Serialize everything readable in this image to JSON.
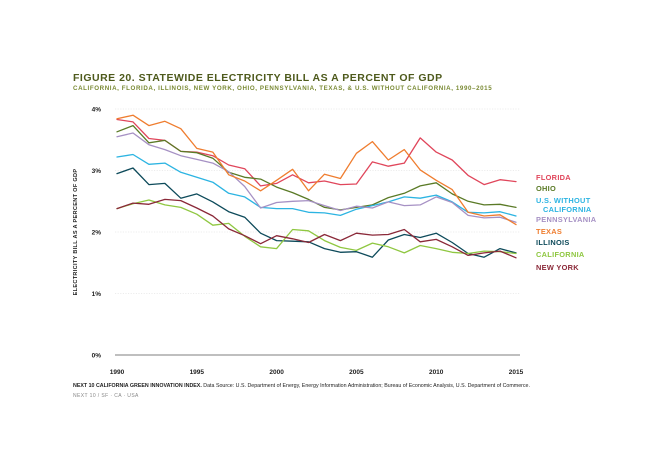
{
  "figure": {
    "title": "FIGURE 20. STATEWIDE ELECTRICITY BILL AS A PERCENT OF GDP",
    "subtitle": "CALIFORNIA, FLORIDA, ILLINOIS, NEW YORK, OHIO, PENNSYLVANIA, TEXAS, & U.S. WITHOUT CALIFORNIA, 1990–2015",
    "source_prefix": "NEXT 10 CALIFORNIA GREEN INNOVATION INDEX.",
    "source_text": " Data Source: U.S. Department of Energy, Energy Information Administration; Bureau of Economic Analysis, U.S. Department of Commerce.",
    "footer": "NEXT 10 / SF · CA · USA"
  },
  "chart_data": {
    "type": "line",
    "ylabel": "ELECTRICITY BILL AS A PERCENT OF GDP",
    "xlabel": "",
    "xlim": [
      1990,
      2015
    ],
    "ylim": [
      0,
      4
    ],
    "x_ticks": [
      1990,
      1995,
      2000,
      2005,
      2010,
      2015
    ],
    "y_ticks": [
      0,
      1,
      2,
      3,
      4
    ],
    "y_tick_labels": [
      "0%",
      "1%",
      "2%",
      "3%",
      "4%"
    ],
    "grid": "horizontal",
    "legend_position": "right",
    "x": [
      1990,
      1991,
      1992,
      1993,
      1994,
      1995,
      1996,
      1997,
      1998,
      1999,
      2000,
      2001,
      2002,
      2003,
      2004,
      2005,
      2006,
      2007,
      2008,
      2009,
      2010,
      2011,
      2012,
      2013,
      2014,
      2015
    ],
    "series": [
      {
        "name": "FLORIDA",
        "color": "#e0465b",
        "values": [
          3.83,
          3.79,
          3.52,
          3.49,
          3.31,
          3.3,
          3.24,
          3.09,
          3.03,
          2.75,
          2.79,
          2.93,
          2.8,
          2.83,
          2.77,
          2.78,
          3.14,
          3.07,
          3.12,
          3.53,
          3.3,
          3.17,
          2.92,
          2.77,
          2.85,
          2.82
        ]
      },
      {
        "name": "OHIO",
        "color": "#5a7a26",
        "values": [
          3.63,
          3.73,
          3.45,
          3.49,
          3.31,
          3.29,
          3.2,
          2.97,
          2.89,
          2.86,
          2.73,
          2.64,
          2.53,
          2.4,
          2.36,
          2.4,
          2.44,
          2.56,
          2.63,
          2.75,
          2.8,
          2.62,
          2.5,
          2.44,
          2.45,
          2.4
        ]
      },
      {
        "name": "U.S. WITHOUT CALIFORNIA",
        "color": "#2cb4e2",
        "values": [
          3.22,
          3.26,
          3.1,
          3.12,
          2.97,
          2.89,
          2.81,
          2.63,
          2.57,
          2.4,
          2.38,
          2.38,
          2.32,
          2.31,
          2.27,
          2.37,
          2.43,
          2.49,
          2.57,
          2.55,
          2.6,
          2.49,
          2.32,
          2.31,
          2.33,
          2.26
        ]
      },
      {
        "name": "PENNSYLVANIA",
        "color": "#a691c4",
        "values": [
          3.55,
          3.61,
          3.42,
          3.34,
          3.24,
          3.18,
          3.12,
          2.98,
          2.74,
          2.39,
          2.48,
          2.5,
          2.51,
          2.43,
          2.35,
          2.42,
          2.39,
          2.49,
          2.43,
          2.44,
          2.57,
          2.48,
          2.27,
          2.23,
          2.24,
          2.16
        ]
      },
      {
        "name": "TEXAS",
        "color": "#ef7d2f",
        "values": [
          3.84,
          3.9,
          3.73,
          3.8,
          3.68,
          3.36,
          3.3,
          2.93,
          2.83,
          2.67,
          2.84,
          3.02,
          2.67,
          2.94,
          2.87,
          3.28,
          3.47,
          3.17,
          3.34,
          3.01,
          2.84,
          2.69,
          2.32,
          2.26,
          2.28,
          2.12
        ]
      },
      {
        "name": "ILLINOIS",
        "color": "#0d4a5a",
        "values": [
          2.95,
          3.04,
          2.77,
          2.79,
          2.55,
          2.62,
          2.49,
          2.33,
          2.24,
          1.98,
          1.86,
          1.85,
          1.84,
          1.73,
          1.67,
          1.68,
          1.59,
          1.87,
          1.96,
          1.91,
          1.98,
          1.83,
          1.65,
          1.59,
          1.73,
          1.66
        ]
      },
      {
        "name": "CALIFORNIA",
        "color": "#8fc741",
        "values": [
          2.38,
          2.46,
          2.52,
          2.44,
          2.4,
          2.29,
          2.11,
          2.14,
          1.93,
          1.76,
          1.73,
          2.04,
          2.02,
          1.86,
          1.75,
          1.7,
          1.82,
          1.76,
          1.66,
          1.78,
          1.73,
          1.67,
          1.65,
          1.69,
          1.68,
          1.65
        ]
      },
      {
        "name": "NEW YORK",
        "color": "#8a2838",
        "values": [
          2.38,
          2.47,
          2.45,
          2.53,
          2.51,
          2.39,
          2.26,
          2.05,
          1.94,
          1.81,
          1.94,
          1.89,
          1.83,
          1.96,
          1.86,
          1.98,
          1.95,
          1.96,
          2.04,
          1.84,
          1.88,
          1.76,
          1.62,
          1.66,
          1.69,
          1.58
        ]
      }
    ],
    "legend": [
      {
        "label": "FLORIDA",
        "color": "#e0465b"
      },
      {
        "label": "OHIO",
        "color": "#5a7a26"
      },
      {
        "label": "U.S. WITHOUT",
        "label2": "CALIFORNIA",
        "color": "#2cb4e2"
      },
      {
        "label": "PENNSYLVANIA",
        "color": "#a691c4"
      },
      {
        "label": "TEXAS",
        "color": "#ef7d2f"
      },
      {
        "label": "ILLINOIS",
        "color": "#0d4a5a"
      },
      {
        "label": "CALIFORNIA",
        "color": "#8fc741"
      },
      {
        "label": "NEW YORK",
        "color": "#8a2838"
      }
    ]
  }
}
